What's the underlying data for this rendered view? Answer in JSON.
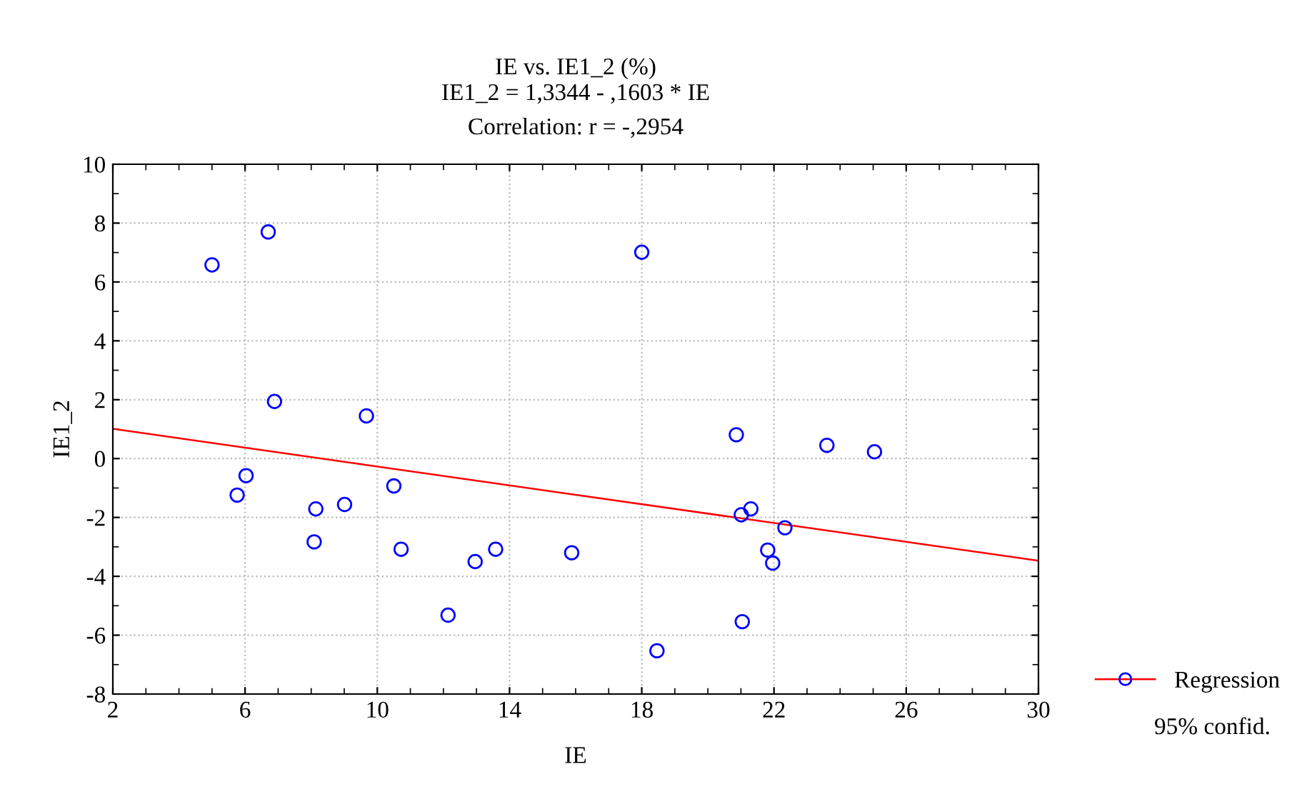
{
  "chart_data": {
    "type": "scatter",
    "title": "IE vs. IE1_2 (%)",
    "subtitle": "IE1_2 = 1,3344 - ,1603 * IE\nCorrelation: r = -,2954",
    "xlabel": "IE",
    "ylabel": "IE1_2",
    "x": [
      5.0,
      6.7,
      6.89,
      9.67,
      6.03,
      5.76,
      8.14,
      8.09,
      9.01,
      10.5,
      10.72,
      12.14,
      12.96,
      13.58,
      15.88,
      18.0,
      20.86,
      23.6,
      25.04,
      21.3,
      21.01,
      22.33,
      21.81,
      21.96,
      21.04,
      18.46
    ],
    "series": [
      {
        "color": "#0000ff",
        "marker": "circle",
        "values": [
          6.58,
          7.7,
          1.94,
          1.45,
          -0.58,
          -1.24,
          -1.71,
          -2.83,
          -1.56,
          -0.93,
          -3.08,
          -5.32,
          -3.5,
          -3.08,
          -3.2,
          7.01,
          0.81,
          0.45,
          0.23,
          -1.71,
          -1.91,
          -2.35,
          -3.11,
          -3.55,
          -5.54,
          -6.53
        ]
      },
      {
        "type": "line",
        "name": "Regression",
        "color": "#ff0000",
        "x": [
          2,
          30
        ],
        "values": [
          1.01,
          -3.47
        ]
      }
    ],
    "annotations": [
      "95% confid."
    ],
    "xlim": [
      2,
      30
    ],
    "xticks": [
      2,
      6,
      10,
      14,
      18,
      22,
      26,
      30
    ],
    "ylim": [
      -8,
      10
    ],
    "yticks": [
      -8,
      -6,
      -4,
      -2,
      0,
      2,
      4,
      6,
      8,
      10
    ],
    "grid": true,
    "legend": "bottom right"
  }
}
